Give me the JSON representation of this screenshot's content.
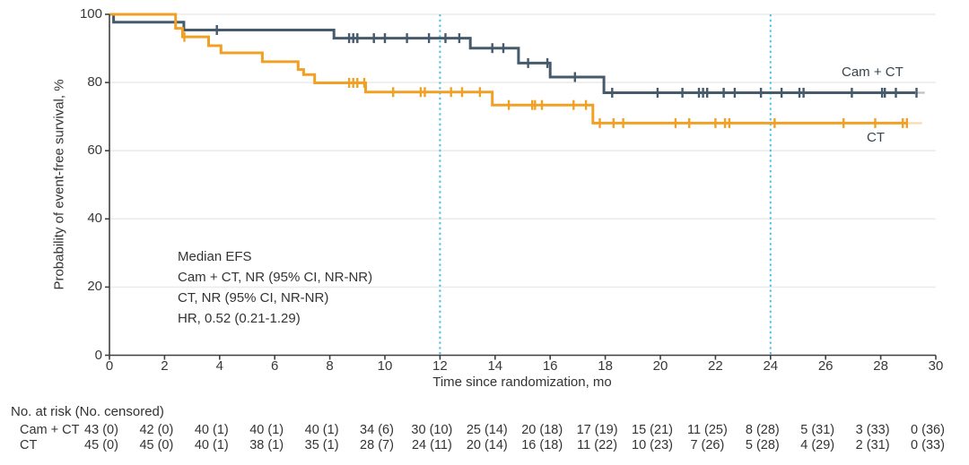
{
  "chart_data": {
    "type": "line",
    "variant": "kaplan_meier_step",
    "title": "",
    "xlabel": "Time since randomization, mo",
    "ylabel": "Probability of event-free survival, %",
    "xlim": [
      0,
      30
    ],
    "ylim": [
      0,
      100
    ],
    "xticks": [
      0,
      2,
      4,
      6,
      8,
      10,
      12,
      14,
      16,
      18,
      20,
      22,
      24,
      26,
      28,
      30
    ],
    "yticks": [
      0,
      20,
      40,
      60,
      80,
      100
    ],
    "grid": "horizontal-light",
    "gridline_color": "#ebebeb",
    "axis_color": "#3f3f3f",
    "reference_lines_x": [
      12,
      24
    ],
    "reference_line_color": "#4ec1e8",
    "legend_position": "curve-end-labels",
    "series": [
      {
        "name": "Cam + CT",
        "color": "#465a6b",
        "steps": [
          [
            0,
            100
          ],
          [
            0.15,
            97.7
          ],
          [
            2.7,
            95.4
          ],
          [
            8.15,
            93.0
          ],
          [
            13.1,
            90.1
          ],
          [
            14.85,
            85.7
          ],
          [
            16.0,
            81.6
          ],
          [
            17.95,
            77.0
          ]
        ],
        "solid_end": 29.25,
        "end": 29.6,
        "censors": [
          [
            3.9,
            95.4
          ],
          [
            8.7,
            93.0
          ],
          [
            8.85,
            93.0
          ],
          [
            9.0,
            93.0
          ],
          [
            9.6,
            93.0
          ],
          [
            10.0,
            93.0
          ],
          [
            10.8,
            93.0
          ],
          [
            11.6,
            93.0
          ],
          [
            12.2,
            93.0
          ],
          [
            12.7,
            93.0
          ],
          [
            13.9,
            90.1
          ],
          [
            14.3,
            90.1
          ],
          [
            15.2,
            85.7
          ],
          [
            15.9,
            85.7
          ],
          [
            16.9,
            81.6
          ],
          [
            18.25,
            77.0
          ],
          [
            19.9,
            77.0
          ],
          [
            20.8,
            77.0
          ],
          [
            21.4,
            77.0
          ],
          [
            21.55,
            77.0
          ],
          [
            21.7,
            77.0
          ],
          [
            22.3,
            77.0
          ],
          [
            22.7,
            77.0
          ],
          [
            23.65,
            77.0
          ],
          [
            24.4,
            77.0
          ],
          [
            25.05,
            77.0
          ],
          [
            25.2,
            77.0
          ],
          [
            26.95,
            77.0
          ],
          [
            28.05,
            77.0
          ],
          [
            28.15,
            77.0
          ],
          [
            28.55,
            77.0
          ],
          [
            29.3,
            77.0
          ]
        ]
      },
      {
        "name": "CT",
        "color": "#f0a125",
        "steps": [
          [
            0,
            100
          ],
          [
            2.4,
            95.9
          ],
          [
            2.65,
            93.4
          ],
          [
            3.6,
            90.8
          ],
          [
            4.05,
            88.7
          ],
          [
            5.55,
            86.1
          ],
          [
            6.85,
            83.8
          ],
          [
            7.05,
            82.3
          ],
          [
            7.45,
            79.9
          ],
          [
            9.3,
            77.2
          ],
          [
            13.9,
            73.4
          ],
          [
            17.55,
            68.1
          ]
        ],
        "solid_end": 28.95,
        "end": 29.5,
        "censors": [
          [
            2.72,
            93.4
          ],
          [
            8.7,
            79.9
          ],
          [
            8.85,
            79.9
          ],
          [
            9.0,
            79.9
          ],
          [
            9.25,
            79.9
          ],
          [
            10.3,
            77.2
          ],
          [
            11.3,
            77.2
          ],
          [
            11.45,
            77.2
          ],
          [
            12.4,
            77.2
          ],
          [
            12.8,
            77.2
          ],
          [
            13.45,
            77.2
          ],
          [
            14.5,
            73.4
          ],
          [
            15.35,
            73.4
          ],
          [
            15.45,
            73.4
          ],
          [
            15.7,
            73.4
          ],
          [
            16.85,
            73.4
          ],
          [
            17.3,
            73.4
          ],
          [
            17.8,
            68.1
          ],
          [
            18.3,
            68.1
          ],
          [
            18.65,
            68.1
          ],
          [
            20.55,
            68.1
          ],
          [
            21.05,
            68.1
          ],
          [
            22.0,
            68.1
          ],
          [
            22.35,
            68.1
          ],
          [
            22.5,
            68.1
          ],
          [
            24.15,
            68.1
          ],
          [
            26.65,
            68.1
          ],
          [
            27.8,
            68.1
          ],
          [
            28.8,
            68.1
          ],
          [
            28.95,
            68.1
          ]
        ]
      }
    ],
    "annotation": {
      "lines": [
        "Median EFS",
        "Cam + CT, NR (95% CI, NR-NR)",
        "CT, NR (95% CI, NR-NR)",
        "HR, 0.52 (0.21-1.29)"
      ]
    }
  },
  "risk_table": {
    "title": "No. at risk (No. censored)",
    "time_points": [
      0,
      2,
      4,
      6,
      8,
      10,
      12,
      14,
      16,
      18,
      20,
      22,
      24,
      26,
      28,
      30
    ],
    "rows": [
      {
        "label": "Cam + CT",
        "values": [
          "43 (0)",
          "42 (0)",
          "40 (1)",
          "40 (1)",
          "40 (1)",
          "34 (6)",
          "30 (10)",
          "25 (14)",
          "20 (18)",
          "17 (19)",
          "15 (21)",
          "11 (25)",
          "8 (28)",
          "5 (31)",
          "3 (33)",
          "0 (36)"
        ]
      },
      {
        "label": "CT",
        "values": [
          "45 (0)",
          "45 (0)",
          "40 (1)",
          "38 (1)",
          "35 (1)",
          "28 (7)",
          "24 (11)",
          "20 (14)",
          "16 (18)",
          "11 (22)",
          "10 (23)",
          "7 (26)",
          "5 (28)",
          "4 (29)",
          "2 (31)",
          "0 (33)"
        ]
      }
    ]
  }
}
